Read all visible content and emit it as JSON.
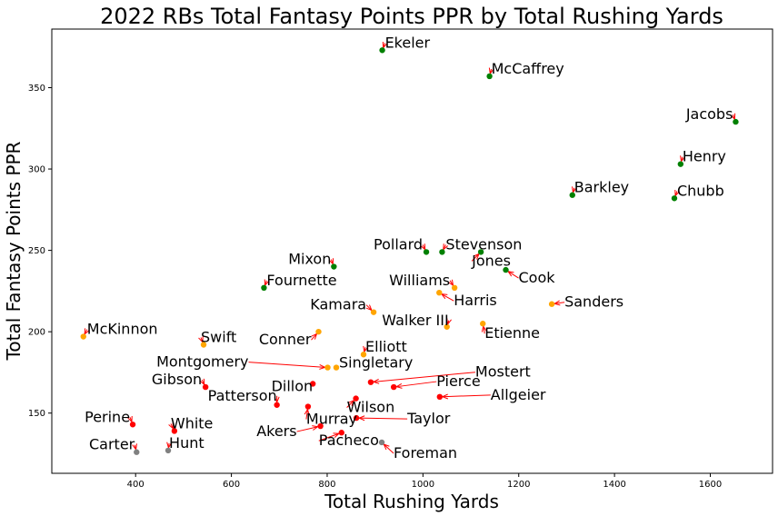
{
  "chart_data": {
    "type": "scatter",
    "title": "2022 RBs Total Fantasy Points PPR by Total Rushing Yards",
    "xlabel": "Total Rushing Yards",
    "ylabel": "Total Fantasy Points PPR",
    "xlim": [
      225,
      1730
    ],
    "ylim": [
      113,
      386
    ],
    "xticks": [
      400,
      600,
      800,
      1000,
      1200,
      1400,
      1600
    ],
    "yticks": [
      150,
      200,
      250,
      300,
      350
    ],
    "colors": {
      "green": "#008000",
      "orange": "#ffa500",
      "red": "#ff0000",
      "gray": "#808080",
      "arrow": "#ff0000"
    },
    "points": [
      {
        "name": "Ekeler",
        "x": 915,
        "y": 373,
        "color": "green"
      },
      {
        "name": "McCaffrey",
        "x": 1139,
        "y": 357,
        "color": "green"
      },
      {
        "name": "Jacobs",
        "x": 1653,
        "y": 329,
        "color": "green"
      },
      {
        "name": "Henry",
        "x": 1538,
        "y": 303,
        "color": "green"
      },
      {
        "name": "Barkley",
        "x": 1312,
        "y": 284,
        "color": "green"
      },
      {
        "name": "Chubb",
        "x": 1525,
        "y": 282,
        "color": "green"
      },
      {
        "name": "Pollard",
        "x": 1007,
        "y": 249,
        "color": "green"
      },
      {
        "name": "Stevenson",
        "x": 1040,
        "y": 249,
        "color": "green"
      },
      {
        "name": "Jones",
        "x": 1121,
        "y": 249,
        "color": "green"
      },
      {
        "name": "Mixon",
        "x": 814,
        "y": 240,
        "color": "green"
      },
      {
        "name": "Cook",
        "x": 1173,
        "y": 238,
        "color": "green"
      },
      {
        "name": "Fournette",
        "x": 668,
        "y": 227,
        "color": "green"
      },
      {
        "name": "Williams",
        "x": 1066,
        "y": 227,
        "color": "orange"
      },
      {
        "name": "Harris",
        "x": 1034,
        "y": 224,
        "color": "orange"
      },
      {
        "name": "Sanders",
        "x": 1269,
        "y": 217,
        "color": "orange"
      },
      {
        "name": "Kamara",
        "x": 897,
        "y": 212,
        "color": "orange"
      },
      {
        "name": "Walker III",
        "x": 1050,
        "y": 203,
        "color": "orange"
      },
      {
        "name": "Etienne",
        "x": 1125,
        "y": 205,
        "color": "orange"
      },
      {
        "name": "McKinnon",
        "x": 291,
        "y": 197,
        "color": "orange"
      },
      {
        "name": "Conner",
        "x": 782,
        "y": 200,
        "color": "orange"
      },
      {
        "name": "Swift",
        "x": 542,
        "y": 192,
        "color": "orange"
      },
      {
        "name": "Elliott",
        "x": 876,
        "y": 186,
        "color": "orange"
      },
      {
        "name": "Montgomery",
        "x": 801,
        "y": 178,
        "color": "orange"
      },
      {
        "name": "Singletary",
        "x": 819,
        "y": 178,
        "color": "orange"
      },
      {
        "name": "Mostert",
        "x": 891,
        "y": 169,
        "color": "red"
      },
      {
        "name": "Gibson",
        "x": 546,
        "y": 166,
        "color": "red"
      },
      {
        "name": "Dillon",
        "x": 770,
        "y": 168,
        "color": "red"
      },
      {
        "name": "Pierce",
        "x": 939,
        "y": 166,
        "color": "red"
      },
      {
        "name": "Allgeier",
        "x": 1035,
        "y": 160,
        "color": "red"
      },
      {
        "name": "Wilson",
        "x": 860,
        "y": 159,
        "color": "red"
      },
      {
        "name": "Patterson",
        "x": 695,
        "y": 155,
        "color": "red"
      },
      {
        "name": "Murray",
        "x": 760,
        "y": 154,
        "color": "red"
      },
      {
        "name": "Taylor",
        "x": 861,
        "y": 147,
        "color": "red"
      },
      {
        "name": "Perine",
        "x": 394,
        "y": 143,
        "color": "red"
      },
      {
        "name": "White",
        "x": 481,
        "y": 139,
        "color": "red"
      },
      {
        "name": "Akers",
        "x": 786,
        "y": 142,
        "color": "red"
      },
      {
        "name": "Pacheco",
        "x": 830,
        "y": 138,
        "color": "red"
      },
      {
        "name": "Hunt",
        "x": 468,
        "y": 127,
        "color": "gray"
      },
      {
        "name": "Carter",
        "x": 402,
        "y": 126,
        "color": "gray"
      },
      {
        "name": "Foreman",
        "x": 914,
        "y": 132,
        "color": "gray"
      }
    ]
  }
}
